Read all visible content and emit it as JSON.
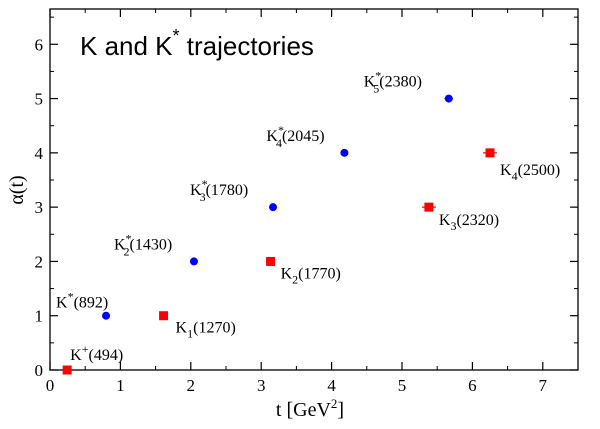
{
  "chart_data": {
    "type": "scatter",
    "title": {
      "main": "K and K",
      "sup": "*",
      "rest": " trajectories"
    },
    "xlabel": {
      "main": "t [GeV",
      "sup": "2",
      "rest": "]"
    },
    "ylabel": "α(t)",
    "xlim": [
      0,
      7.5
    ],
    "ylim": [
      0,
      6.65
    ],
    "xticks": [
      "0",
      "1",
      "2",
      "3",
      "4",
      "5",
      "6",
      "7"
    ],
    "yticks": [
      "0",
      "1",
      "2",
      "3",
      "4",
      "5",
      "6"
    ],
    "grid": false,
    "series": [
      {
        "color": "#0000ff",
        "marker": "circle",
        "points": [
          {
            "x": 0.796,
            "y": 1,
            "err": 0,
            "name": "K",
            "sup": "*",
            "sub": "",
            "rest": "(892)"
          },
          {
            "x": 2.045,
            "y": 2,
            "err": 0,
            "name": "K",
            "sup": "*",
            "sub": "2",
            "rest": "(1430)"
          },
          {
            "x": 3.168,
            "y": 3,
            "err": 0,
            "name": "K",
            "sup": "*",
            "sub": "3",
            "rest": "(1780)"
          },
          {
            "x": 4.182,
            "y": 4,
            "err": 0,
            "name": "K",
            "sup": "*",
            "sub": "4",
            "rest": "(2045)"
          },
          {
            "x": 5.664,
            "y": 5,
            "err": 0.06,
            "name": "K",
            "sup": "*",
            "sub": "5",
            "rest": "(2380)"
          }
        ]
      },
      {
        "color": "#ff0000",
        "marker": "square",
        "points": [
          {
            "x": 0.244,
            "y": 0,
            "err": 0,
            "name": "K",
            "sup": "+",
            "sub": "",
            "rest": "(494)"
          },
          {
            "x": 1.613,
            "y": 1,
            "err": 0,
            "name": "K",
            "sup": "",
            "sub": "1",
            "rest": "(1270)"
          },
          {
            "x": 3.133,
            "y": 2,
            "err": 0,
            "name": "K",
            "sup": "",
            "sub": "2",
            "rest": "(1770)"
          },
          {
            "x": 5.382,
            "y": 3,
            "err": 0.1,
            "name": "K",
            "sup": "",
            "sub": "3",
            "rest": "(2320)"
          },
          {
            "x": 6.25,
            "y": 4,
            "err": 0.1,
            "name": "K",
            "sup": "",
            "sub": "4",
            "rest": "(2500)"
          }
        ]
      }
    ]
  }
}
